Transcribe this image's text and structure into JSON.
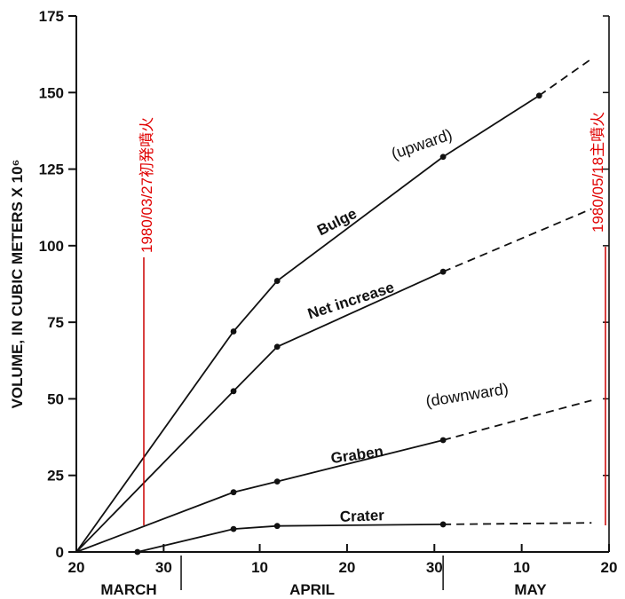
{
  "chart_data": {
    "type": "line",
    "ylabel": "VOLUME, IN CUBIC METERS X 10⁶",
    "ylim": [
      0,
      175
    ],
    "yticks": [
      "0",
      "25",
      "50",
      "75",
      "100",
      "125",
      "150",
      "175"
    ],
    "xlim_days_note": "",
    "xtick_labels": [
      "20",
      "30",
      "10",
      "20",
      "30",
      "10",
      "20"
    ],
    "month_labels": [
      "MARCH",
      "APRIL",
      "MAY"
    ],
    "series": [
      {
        "name": "Bulge",
        "points": [
          [
            "1980-03-20",
            0
          ],
          [
            "1980-04-07",
            72
          ],
          [
            "1980-04-12",
            88.5
          ],
          [
            "1980-05-01",
            129
          ],
          [
            "1980-05-12",
            149
          ]
        ],
        "projected": [
          [
            "1980-05-12",
            149
          ],
          [
            "1980-05-18",
            161
          ]
        ]
      },
      {
        "name": "Net increase",
        "points": [
          [
            "1980-03-20",
            0
          ],
          [
            "1980-04-07",
            52.5
          ],
          [
            "1980-04-12",
            67
          ],
          [
            "1980-05-01",
            91.5
          ]
        ],
        "projected": [
          [
            "1980-05-01",
            91.5
          ],
          [
            "1980-05-18",
            112
          ]
        ]
      },
      {
        "name": "Graben",
        "points": [
          [
            "1980-03-20",
            0
          ],
          [
            "1980-04-07",
            19.5
          ],
          [
            "1980-04-12",
            23
          ],
          [
            "1980-05-01",
            36.5
          ]
        ],
        "projected": [
          [
            "1980-05-01",
            36.5
          ],
          [
            "1980-05-18",
            49.5
          ]
        ]
      },
      {
        "name": "Crater",
        "points": [
          [
            "1980-03-27",
            0
          ],
          [
            "1980-04-07",
            7.5
          ],
          [
            "1980-04-12",
            8.5
          ],
          [
            "1980-05-01",
            9
          ]
        ],
        "projected": [
          [
            "1980-05-01",
            9
          ],
          [
            "1980-05-18",
            9.5
          ]
        ]
      }
    ],
    "annotations": {
      "upward": "(upward)",
      "downward": "(downward)",
      "first_eruption": "1980/03/27初発噴火",
      "main_eruption": "1980/05/18主噴火"
    }
  }
}
